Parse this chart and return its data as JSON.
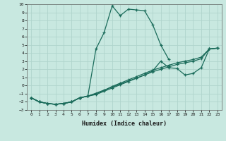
{
  "xlabel": "Humidex (Indice chaleur)",
  "background_color": "#c8e8e0",
  "grid_color": "#b0d4cc",
  "line_color": "#1a6b5a",
  "xlim": [
    -0.5,
    23.5
  ],
  "ylim": [
    -3,
    10
  ],
  "xticks": [
    0,
    1,
    2,
    3,
    4,
    5,
    6,
    7,
    8,
    9,
    10,
    11,
    12,
    13,
    14,
    15,
    16,
    17,
    18,
    19,
    20,
    21,
    22,
    23
  ],
  "yticks": [
    -3,
    -2,
    -1,
    0,
    1,
    2,
    3,
    4,
    5,
    6,
    7,
    8,
    9,
    10
  ],
  "curve_main_x": [
    0,
    1,
    2,
    3,
    4,
    5,
    6,
    7,
    8,
    9,
    10,
    11,
    12,
    13,
    14,
    15,
    16,
    17
  ],
  "curve_main_y": [
    -1.5,
    -2.0,
    -2.2,
    -2.3,
    -2.2,
    -2.0,
    -1.5,
    -1.3,
    4.5,
    6.5,
    9.8,
    8.6,
    9.4,
    9.3,
    9.2,
    7.5,
    5.0,
    3.2
  ],
  "curve_a_x": [
    0,
    1,
    2,
    3,
    4,
    5,
    6,
    7,
    14,
    15,
    16,
    17,
    18,
    19,
    20,
    21,
    22,
    23
  ],
  "curve_a_y": [
    -1.5,
    -2.0,
    -2.2,
    -2.3,
    -2.2,
    -2.0,
    -1.5,
    -1.3,
    1.3,
    1.8,
    3.0,
    2.2,
    2.1,
    1.3,
    1.5,
    2.2,
    4.5,
    4.6
  ],
  "curve_b_x": [
    0,
    1,
    2,
    3,
    4,
    5,
    6,
    7,
    8,
    9,
    10,
    11,
    12,
    13,
    14,
    15,
    16,
    17,
    18,
    19,
    20,
    21,
    22,
    23
  ],
  "curve_b_y": [
    -1.5,
    -2.0,
    -2.2,
    -2.3,
    -2.2,
    -2.0,
    -1.5,
    -1.3,
    -1.1,
    -0.7,
    -0.3,
    0.1,
    0.5,
    0.9,
    1.3,
    1.7,
    2.0,
    2.3,
    2.6,
    2.8,
    3.0,
    3.3,
    4.5,
    4.6
  ],
  "curve_c_x": [
    0,
    1,
    2,
    3,
    4,
    5,
    6,
    7,
    8,
    9,
    10,
    11,
    12,
    13,
    14,
    15,
    16,
    17,
    18,
    19,
    20,
    21,
    22,
    23
  ],
  "curve_c_y": [
    -1.5,
    -2.0,
    -2.2,
    -2.3,
    -2.2,
    -2.0,
    -1.5,
    -1.3,
    -1.0,
    -0.6,
    -0.1,
    0.3,
    0.7,
    1.1,
    1.5,
    1.9,
    2.2,
    2.5,
    2.8,
    3.0,
    3.2,
    3.5,
    4.5,
    4.6
  ]
}
